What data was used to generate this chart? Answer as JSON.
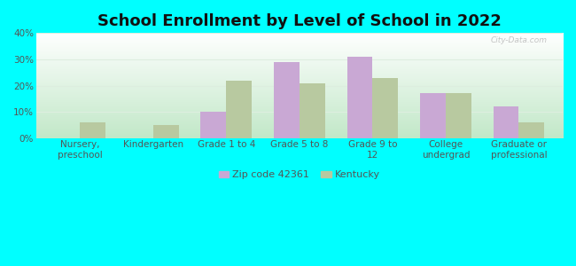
{
  "title": "School Enrollment by Level of School in 2022",
  "categories": [
    "Nursery,\npreschool",
    "Kindergarten",
    "Grade 1 to 4",
    "Grade 5 to 8",
    "Grade 9 to\n12",
    "College\nundergrad",
    "Graduate or\nprofessional"
  ],
  "zip_values": [
    0,
    0,
    10,
    29,
    31,
    17,
    12
  ],
  "ky_values": [
    6,
    5,
    22,
    21,
    23,
    17,
    6
  ],
  "zip_color": "#c9a8d4",
  "ky_color": "#b8c9a0",
  "background_outer": "#00ffff",
  "bg_top_color": "#ffffff",
  "bg_bottom_color": "#c2e8c8",
  "ylim": [
    0,
    40
  ],
  "yticks": [
    0,
    10,
    20,
    30,
    40
  ],
  "legend_zip_label": "Zip code 42361",
  "legend_ky_label": "Kentucky",
  "title_fontsize": 13,
  "tick_fontsize": 7.5,
  "tick_color": "#555555",
  "watermark": "City-Data.com",
  "grid_color": "#ddeedf"
}
